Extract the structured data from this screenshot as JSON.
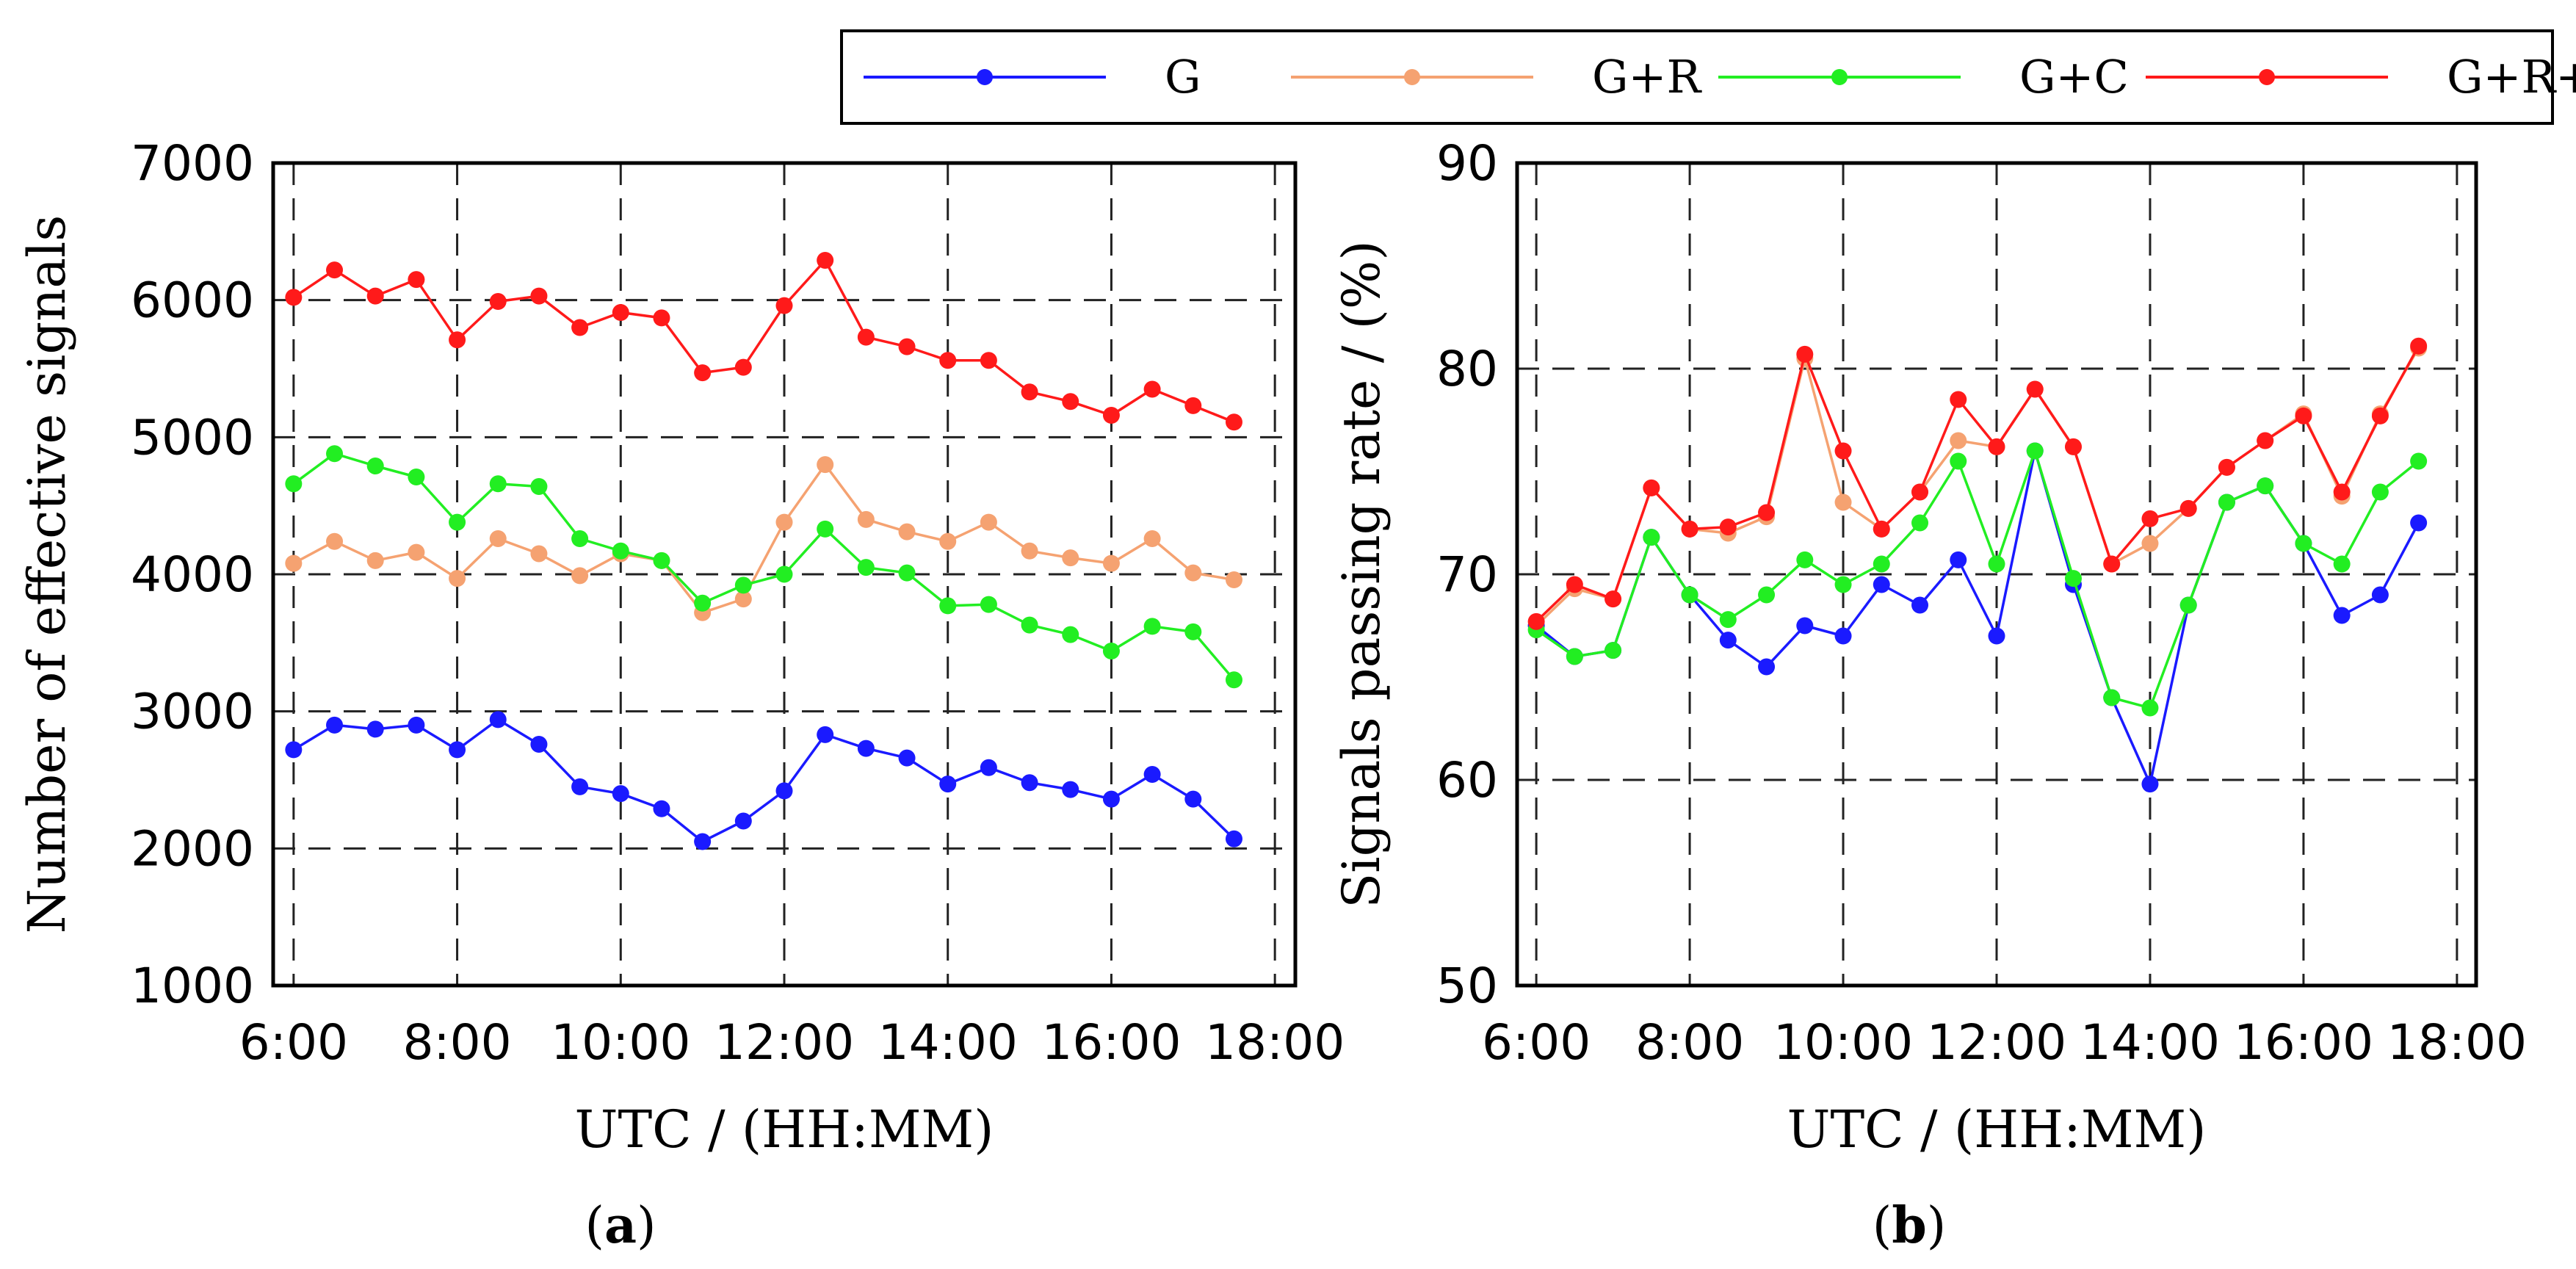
{
  "legend": {
    "entries": [
      {
        "label": "G",
        "color": "#1a1aff"
      },
      {
        "label": "G+R",
        "color": "#f5a271"
      },
      {
        "label": "G+C",
        "color": "#22ee22"
      },
      {
        "label": "G+R+C",
        "color": "#ff1a1a"
      }
    ]
  },
  "chart_data": [
    {
      "type": "line",
      "caption_letter": "a",
      "caption_open": "(",
      "caption_close": ")",
      "title": "",
      "xlabel": "UTC / (HH:MM)",
      "ylabel": "Number of effective signals",
      "xlim": [
        5.75,
        18.25
      ],
      "ylim": [
        1000,
        7000
      ],
      "grid": true,
      "x_ticks": [
        6,
        8,
        10,
        12,
        14,
        16,
        18
      ],
      "x_tick_labels": [
        "6:00",
        "8:00",
        "10:00",
        "12:00",
        "14:00",
        "16:00",
        "18:00"
      ],
      "y_ticks": [
        1000,
        2000,
        3000,
        4000,
        5000,
        6000,
        7000
      ],
      "y_tick_labels": [
        "1000",
        "2000",
        "3000",
        "4000",
        "5000",
        "6000",
        "7000"
      ],
      "x": [
        6,
        6.5,
        7,
        7.5,
        8,
        8.5,
        9,
        9.5,
        10,
        10.5,
        11,
        11.5,
        12,
        12.5,
        13,
        13.5,
        14,
        14.5,
        15,
        15.5,
        16,
        16.5,
        17,
        17.5
      ],
      "series": [
        {
          "name": "G+R",
          "color": "#f5a271",
          "values": [
            4080,
            4240,
            4100,
            4160,
            3970,
            4260,
            4150,
            3990,
            4150,
            4100,
            3720,
            3820,
            4380,
            4800,
            4400,
            4310,
            4240,
            4380,
            4170,
            4120,
            4080,
            4260,
            4010,
            3960
          ]
        },
        {
          "name": "G+C",
          "color": "#22ee22",
          "values": [
            4660,
            4880,
            4790,
            4710,
            4380,
            4660,
            4640,
            4260,
            4170,
            4100,
            3790,
            3920,
            4000,
            4330,
            4050,
            4010,
            3770,
            3780,
            3630,
            3560,
            3440,
            3620,
            3580,
            3230
          ]
        },
        {
          "name": "G",
          "color": "#1a1aff",
          "values": [
            2720,
            2900,
            2870,
            2900,
            2720,
            2940,
            2760,
            2450,
            2400,
            2290,
            2050,
            2200,
            2420,
            2830,
            2730,
            2660,
            2470,
            2590,
            2480,
            2430,
            2360,
            2540,
            2360,
            2070
          ]
        },
        {
          "name": "G+R+C",
          "color": "#ff1a1a",
          "values": [
            6020,
            6220,
            6030,
            6150,
            5710,
            5990,
            6030,
            5800,
            5910,
            5870,
            5470,
            5510,
            5960,
            6290,
            5730,
            5660,
            5560,
            5560,
            5330,
            5260,
            5160,
            5350,
            5230,
            5110
          ]
        }
      ]
    },
    {
      "type": "line",
      "caption_letter": "b",
      "caption_open": "(",
      "caption_close": ")",
      "title": "",
      "xlabel": "UTC / (HH:MM)",
      "ylabel": "Signals passing rate / (%)",
      "xlim": [
        5.75,
        18.25
      ],
      "ylim": [
        50,
        90
      ],
      "grid": true,
      "x_ticks": [
        6,
        8,
        10,
        12,
        14,
        16,
        18
      ],
      "x_tick_labels": [
        "6:00",
        "8:00",
        "10:00",
        "12:00",
        "14:00",
        "16:00",
        "18:00"
      ],
      "y_ticks": [
        50,
        60,
        70,
        80,
        90
      ],
      "y_tick_labels": [
        "50",
        "60",
        "70",
        "80",
        "90"
      ],
      "x": [
        6,
        6.5,
        7,
        7.5,
        8,
        8.5,
        9,
        9.5,
        10,
        10.5,
        11,
        11.5,
        12,
        12.5,
        13,
        13.5,
        14,
        14.5,
        15,
        15.5,
        16,
        16.5,
        17,
        17.5
      ],
      "series": [
        {
          "name": "G+R",
          "color": "#f5a271",
          "values": [
            67.5,
            69.3,
            68.8,
            74.2,
            72.2,
            72.0,
            72.8,
            80.5,
            73.5,
            72.2,
            74.0,
            76.5,
            76.2,
            79.0,
            76.2,
            70.5,
            71.5,
            73.2,
            75.2,
            76.5,
            77.8,
            73.8,
            77.8,
            81.0
          ]
        },
        {
          "name": "G",
          "color": "#1a1aff",
          "values": [
            67.5,
            66.0,
            66.3,
            71.8,
            69.0,
            66.8,
            65.5,
            67.5,
            67.0,
            69.5,
            68.5,
            70.7,
            67.0,
            76.0,
            69.5,
            64.0,
            59.8,
            68.5,
            73.5,
            74.3,
            71.5,
            68.0,
            69.0,
            72.5
          ]
        },
        {
          "name": "G+C",
          "color": "#22ee22",
          "values": [
            67.3,
            66.0,
            66.3,
            71.8,
            69.0,
            67.8,
            69.0,
            70.7,
            69.5,
            70.5,
            72.5,
            75.5,
            70.5,
            76.0,
            69.8,
            64.0,
            63.5,
            68.5,
            73.5,
            74.3,
            71.5,
            70.5,
            74.0,
            75.5
          ]
        },
        {
          "name": "G+R+C",
          "color": "#ff1a1a",
          "values": [
            67.7,
            69.5,
            68.8,
            74.2,
            72.2,
            72.3,
            73.0,
            80.7,
            76.0,
            72.2,
            74.0,
            78.5,
            76.2,
            79.0,
            76.2,
            70.5,
            72.7,
            73.2,
            75.2,
            76.5,
            77.7,
            74.0,
            77.7,
            81.1
          ]
        }
      ]
    }
  ]
}
